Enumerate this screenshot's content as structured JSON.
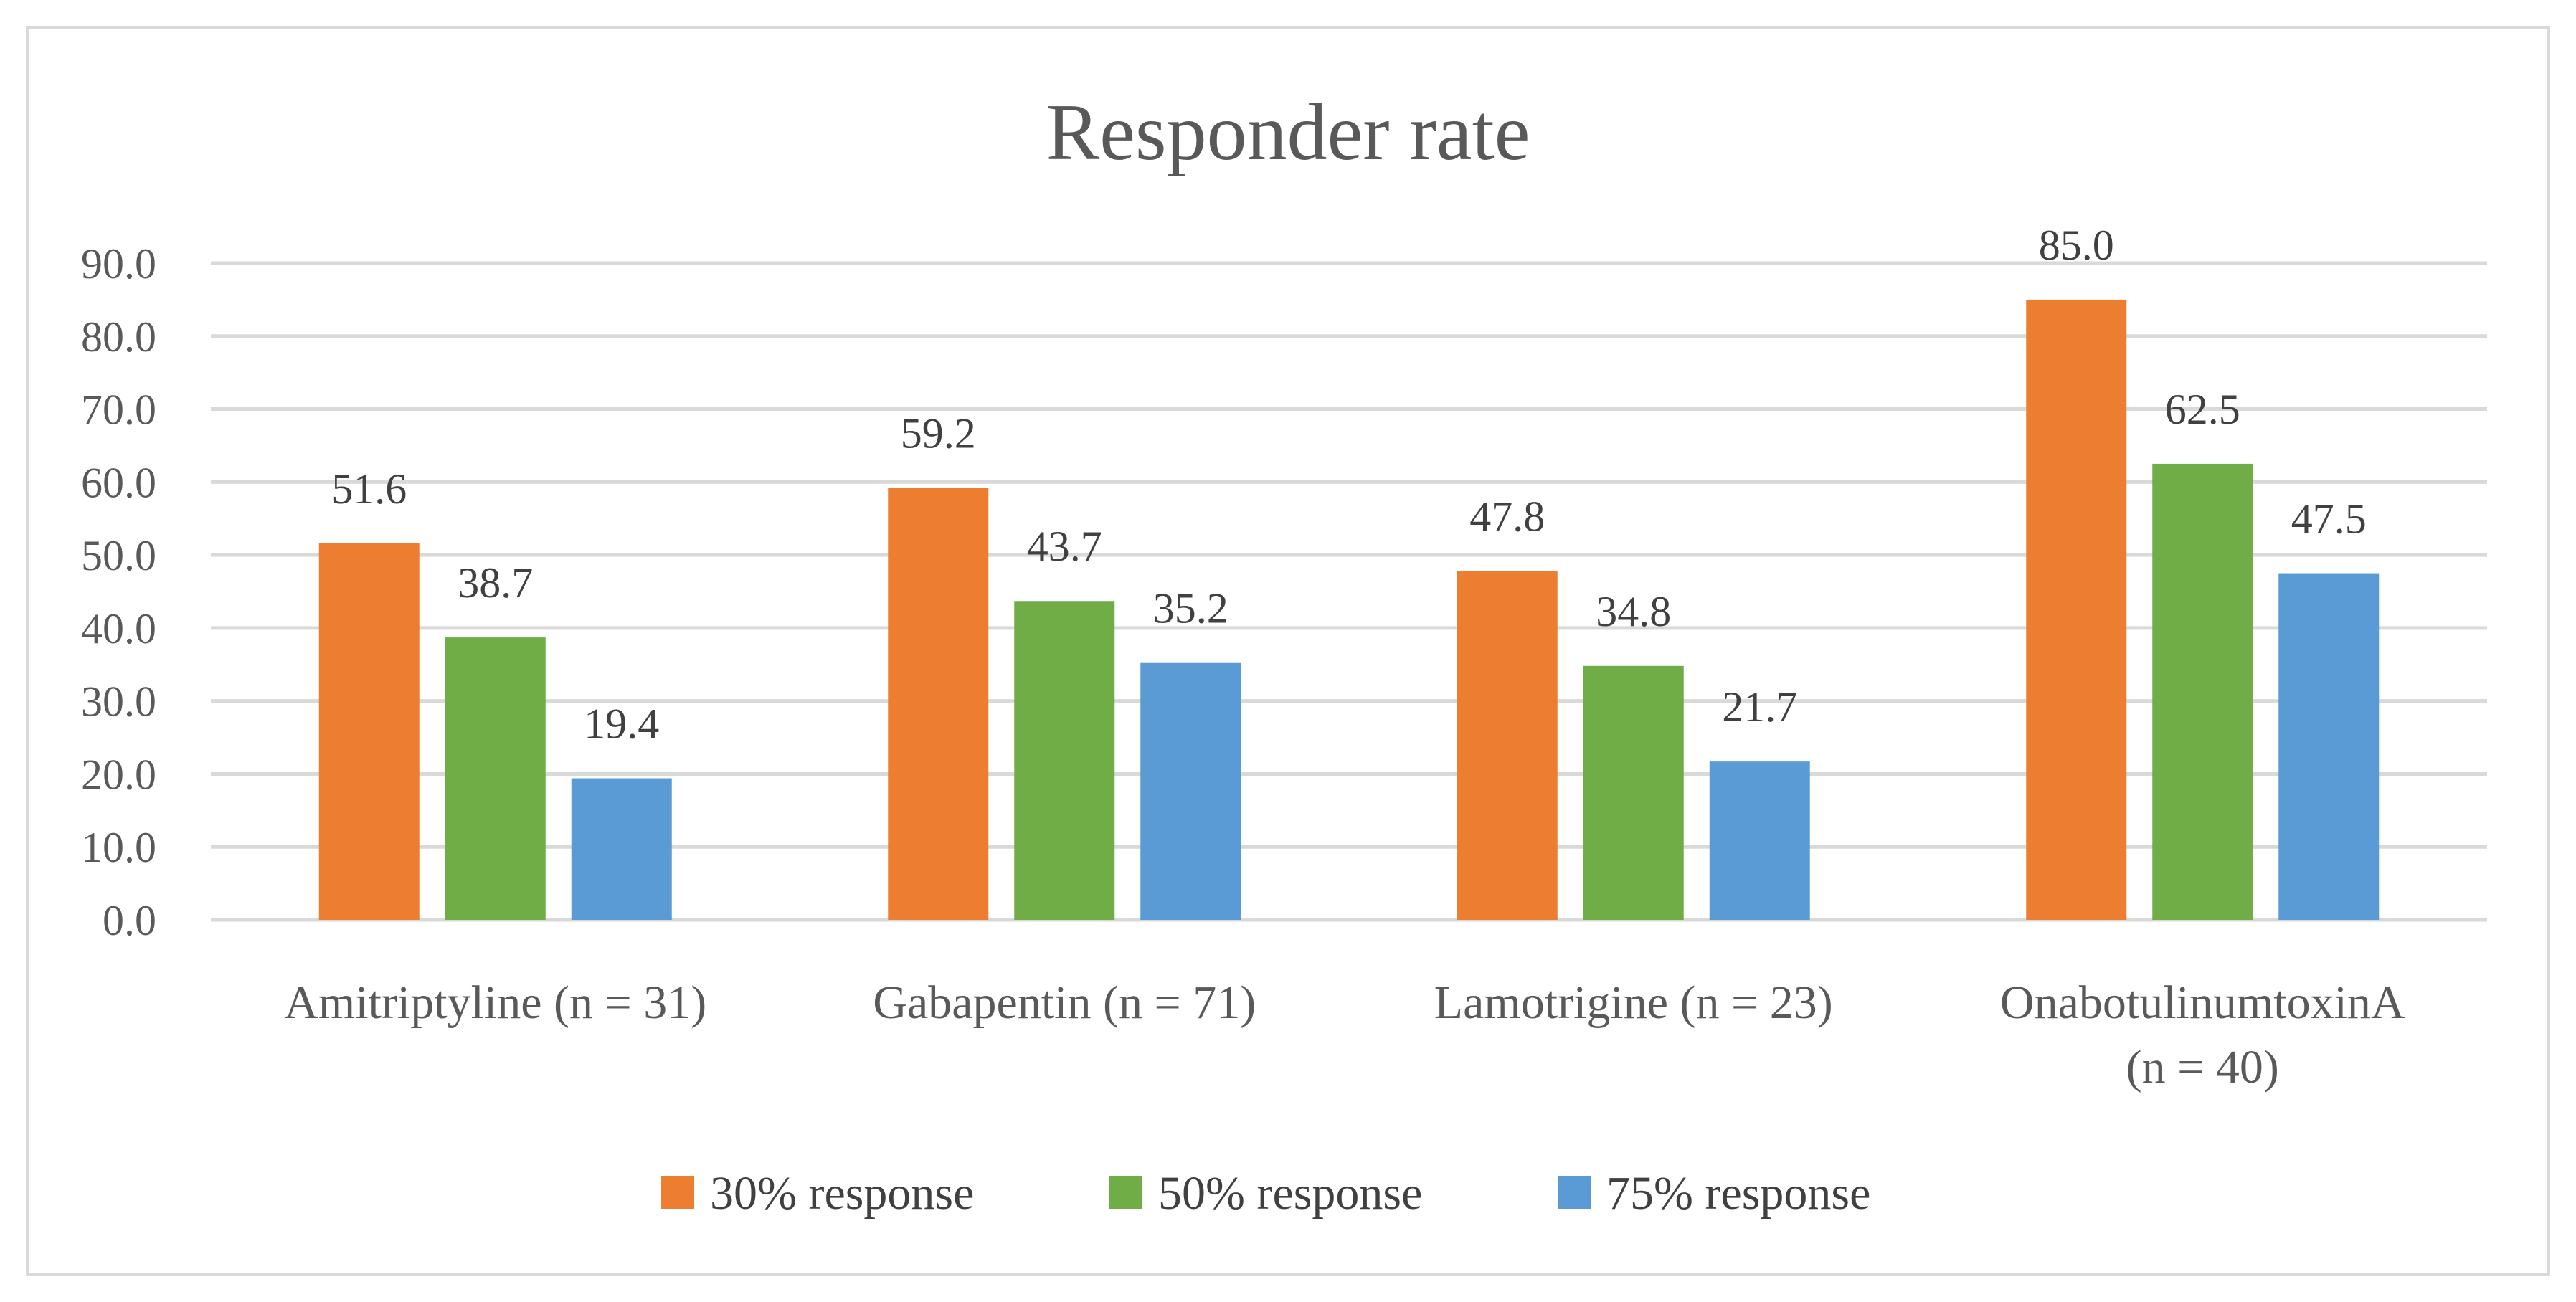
{
  "chart_data": {
    "type": "bar",
    "title": "Responder rate",
    "xlabel": "",
    "ylabel": "",
    "ylim": [
      0,
      90
    ],
    "yticks": [
      "0.0",
      "10.0",
      "20.0",
      "30.0",
      "40.0",
      "50.0",
      "60.0",
      "70.0",
      "80.0",
      "90.0"
    ],
    "categories": [
      [
        "Amitriptyline (n = 31)"
      ],
      [
        "Gabapentin (n = 71)"
      ],
      [
        "Lamotrigine (n = 23)"
      ],
      [
        "OnabotulinumtoxinA",
        "(n = 40)"
      ]
    ],
    "series": [
      {
        "name": "30% response",
        "color": "#ed7d31",
        "values": [
          51.6,
          59.2,
          47.8,
          85.0
        ],
        "labels": [
          "51.6",
          "59.2",
          "47.8",
          "85.0"
        ]
      },
      {
        "name": "50% response",
        "color": "#70ad47",
        "values": [
          38.7,
          43.7,
          34.8,
          62.5
        ],
        "labels": [
          "38.7",
          "43.7",
          "34.8",
          "62.5"
        ]
      },
      {
        "name": "75% response",
        "color": "#5b9bd5",
        "values": [
          19.4,
          35.2,
          21.7,
          47.5
        ],
        "labels": [
          "19.4",
          "35.2",
          "21.7",
          "47.5"
        ]
      }
    ],
    "grid": true,
    "legend": "bottom"
  }
}
